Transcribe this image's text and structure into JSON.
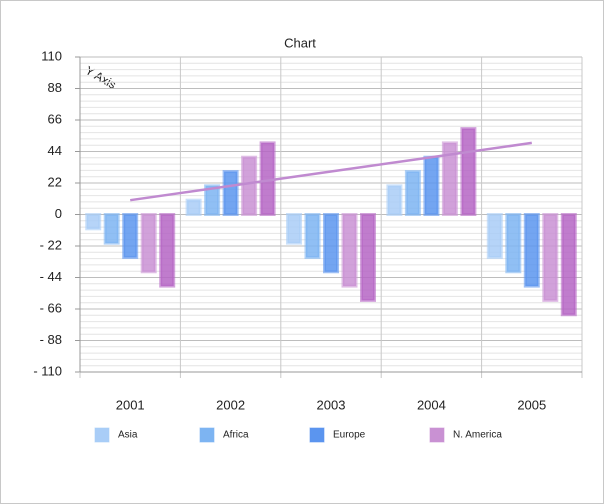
{
  "chart_data": {
    "type": "bar",
    "title": "Chart",
    "y_label": "Y Axis",
    "categories": [
      "2001",
      "2002",
      "2003",
      "2004",
      "2005"
    ],
    "series": [
      {
        "name": "Asia",
        "color": "#a9cdf7",
        "values": [
          -10,
          10,
          -20,
          20,
          -30
        ]
      },
      {
        "name": "Africa",
        "color": "#7db4f2",
        "values": [
          -20,
          20,
          -30,
          30,
          -40
        ]
      },
      {
        "name": "Europe",
        "color": "#5b95ef",
        "values": [
          -30,
          30,
          -40,
          40,
          -50
        ]
      },
      {
        "name": "N. America",
        "color": "#c991d3",
        "values": [
          -40,
          40,
          -50,
          50,
          -60
        ]
      },
      {
        "color": "#b565c4",
        "values": [
          -50,
          50,
          -60,
          60,
          -70
        ]
      }
    ],
    "trendline": {
      "color": "#c08ad0",
      "values": [
        10,
        20,
        30,
        40,
        50
      ]
    },
    "ylim": [
      -110,
      110
    ],
    "yticks": [
      110,
      88,
      66,
      44,
      22,
      0,
      {
        "value": -22,
        "label": "- 22"
      },
      {
        "value": -44,
        "label": "- 44"
      },
      {
        "value": -66,
        "label": "- 66"
      },
      {
        "value": -88,
        "label": "- 88"
      },
      {
        "value": -110,
        "label": "- 110"
      }
    ],
    "grid": true
  }
}
